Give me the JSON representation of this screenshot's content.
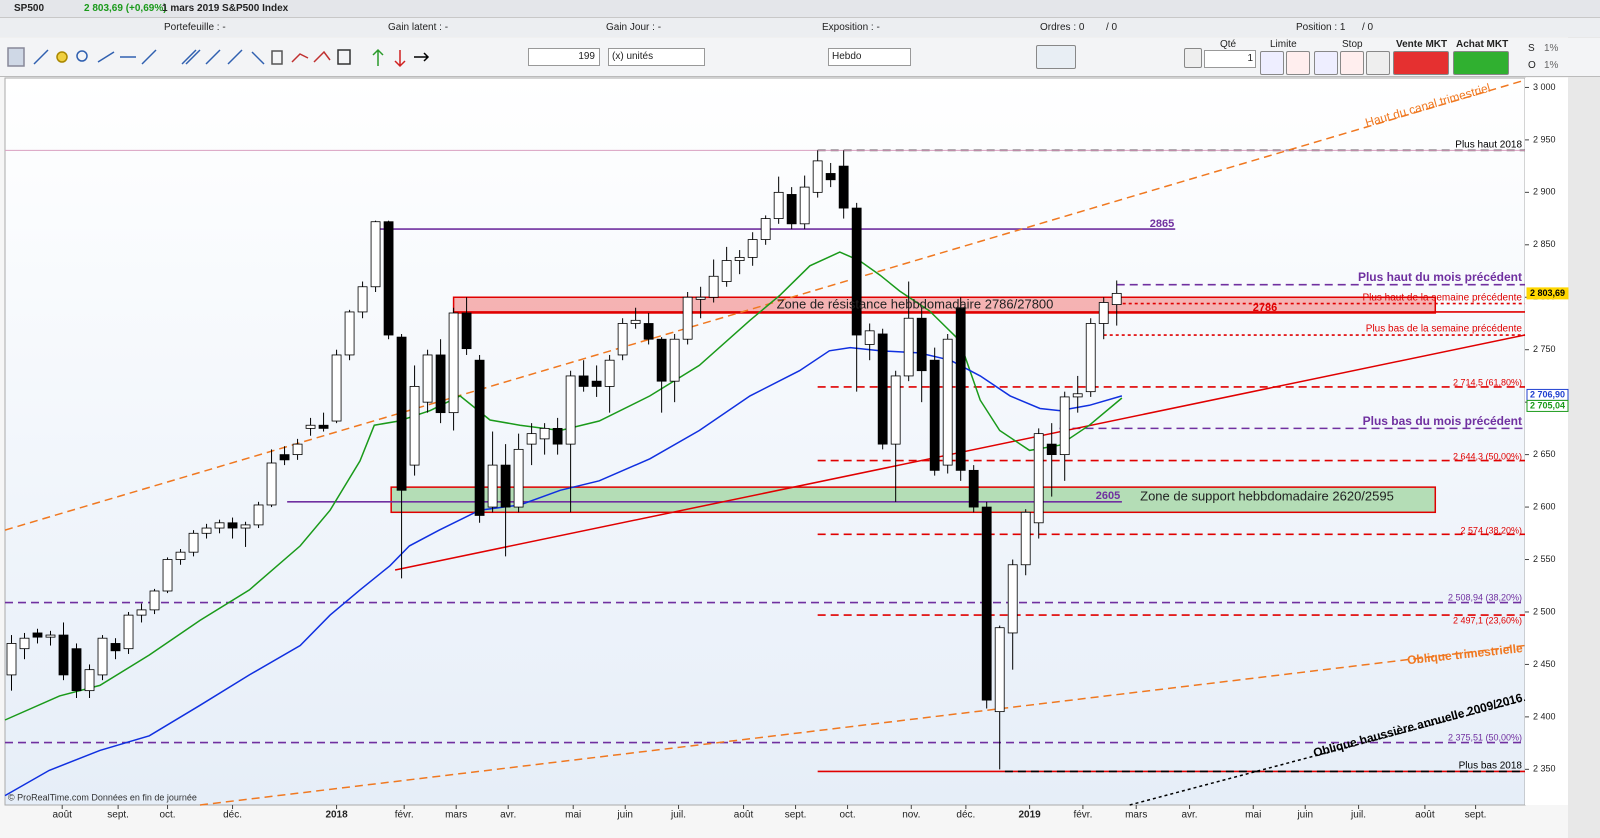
{
  "ui": {
    "symbol": "SP500",
    "quote": "2 803,69 (+0,69%)",
    "description": "1 mars 2019 S&P500 Index",
    "info": [
      "Portefeuille : -",
      "Gain latent : -",
      "Gain Jour : -",
      "Exposition : -",
      "Ordres : 0",
      "/ 0",
      "Position : 1",
      "/ 0"
    ],
    "quantity": "199",
    "unit": "(x) unités",
    "period": "Hebdo",
    "qty_label": "Qté",
    "qty_value": "1",
    "limit": "Limite",
    "stop": "Stop",
    "sell": "Vente MKT",
    "buy": "Achat MKT",
    "s": "S",
    "o": "O",
    "pct1": "1%",
    "pct2": "1%",
    "footer": "© ProRealTime.com  Données en fin de journée"
  },
  "chart_data": {
    "type": "candlestick",
    "candles": [
      [
        2440,
        2478,
        2425,
        2470
      ],
      [
        2465,
        2480,
        2455,
        2475
      ],
      [
        2480,
        2484,
        2470,
        2476
      ],
      [
        2476,
        2482,
        2468,
        2478
      ],
      [
        2478,
        2490,
        2435,
        2440
      ],
      [
        2465,
        2470,
        2418,
        2425
      ],
      [
        2425,
        2450,
        2418,
        2445
      ],
      [
        2440,
        2478,
        2435,
        2475
      ],
      [
        2470,
        2475,
        2455,
        2463
      ],
      [
        2465,
        2500,
        2460,
        2497
      ],
      [
        2497,
        2508,
        2490,
        2502
      ],
      [
        2502,
        2522,
        2498,
        2520
      ],
      [
        2520,
        2552,
        2518,
        2550
      ],
      [
        2550,
        2560,
        2545,
        2557
      ],
      [
        2557,
        2578,
        2553,
        2575
      ],
      [
        2575,
        2584,
        2570,
        2580
      ],
      [
        2580,
        2588,
        2575,
        2585
      ],
      [
        2585,
        2590,
        2570,
        2580
      ],
      [
        2580,
        2586,
        2562,
        2583
      ],
      [
        2583,
        2605,
        2580,
        2602
      ],
      [
        2602,
        2655,
        2600,
        2642
      ],
      [
        2650,
        2658,
        2640,
        2645
      ],
      [
        2650,
        2665,
        2645,
        2660
      ],
      [
        2675,
        2685,
        2668,
        2678
      ],
      [
        2678,
        2690,
        2672,
        2675
      ],
      [
        2682,
        2750,
        2680,
        2745
      ],
      [
        2745,
        2788,
        2740,
        2786
      ],
      [
        2786,
        2815,
        2780,
        2810
      ],
      [
        2810,
        2873,
        2805,
        2872
      ],
      [
        2872,
        2873,
        2760,
        2764
      ],
      [
        2762,
        2765,
        2532,
        2616
      ],
      [
        2640,
        2735,
        2630,
        2715
      ],
      [
        2700,
        2750,
        2690,
        2745
      ],
      [
        2745,
        2760,
        2680,
        2690
      ],
      [
        2690,
        2790,
        2673,
        2785
      ],
      [
        2785,
        2800,
        2745,
        2751
      ],
      [
        2740,
        2745,
        2585,
        2592
      ],
      [
        2600,
        2672,
        2595,
        2640
      ],
      [
        2640,
        2660,
        2553,
        2600
      ],
      [
        2600,
        2670,
        2595,
        2655
      ],
      [
        2660,
        2680,
        2640,
        2670
      ],
      [
        2665,
        2680,
        2650,
        2675
      ],
      [
        2675,
        2685,
        2650,
        2660
      ],
      [
        2660,
        2730,
        2595,
        2725
      ],
      [
        2725,
        2740,
        2710,
        2715
      ],
      [
        2720,
        2735,
        2705,
        2715
      ],
      [
        2715,
        2745,
        2690,
        2740
      ],
      [
        2745,
        2780,
        2740,
        2775
      ],
      [
        2775,
        2790,
        2770,
        2778
      ],
      [
        2775,
        2785,
        2755,
        2760
      ],
      [
        2760,
        2762,
        2690,
        2720
      ],
      [
        2720,
        2765,
        2700,
        2760
      ],
      [
        2760,
        2805,
        2755,
        2800
      ],
      [
        2798,
        2810,
        2780,
        2800
      ],
      [
        2800,
        2836,
        2795,
        2820
      ],
      [
        2815,
        2848,
        2810,
        2835
      ],
      [
        2835,
        2845,
        2822,
        2838
      ],
      [
        2838,
        2862,
        2830,
        2855
      ],
      [
        2855,
        2878,
        2850,
        2875
      ],
      [
        2875,
        2915,
        2870,
        2900
      ],
      [
        2898,
        2905,
        2865,
        2870
      ],
      [
        2870,
        2916,
        2865,
        2905
      ],
      [
        2900,
        2940,
        2895,
        2930
      ],
      [
        2918,
        2928,
        2905,
        2912
      ],
      [
        2925,
        2940,
        2875,
        2885
      ],
      [
        2885,
        2890,
        2710,
        2764
      ],
      [
        2755,
        2775,
        2740,
        2768
      ],
      [
        2765,
        2770,
        2655,
        2660
      ],
      [
        2660,
        2730,
        2605,
        2725
      ],
      [
        2725,
        2815,
        2720,
        2780
      ],
      [
        2780,
        2790,
        2700,
        2730
      ],
      [
        2740,
        2752,
        2630,
        2635
      ],
      [
        2640,
        2765,
        2632,
        2760
      ],
      [
        2790,
        2800,
        2625,
        2635
      ],
      [
        2635,
        2640,
        2595,
        2600
      ],
      [
        2600,
        2605,
        2408,
        2416
      ],
      [
        2405,
        2487,
        2350,
        2485
      ],
      [
        2480,
        2550,
        2445,
        2545
      ],
      [
        2545,
        2598,
        2535,
        2595
      ],
      [
        2585,
        2675,
        2570,
        2670
      ],
      [
        2660,
        2680,
        2610,
        2650
      ],
      [
        2650,
        2710,
        2625,
        2705
      ],
      [
        2705,
        2725,
        2690,
        2708
      ],
      [
        2710,
        2780,
        2705,
        2775
      ],
      [
        2775,
        2800,
        2760,
        2795
      ],
      [
        2793,
        2816,
        2773,
        2803.69
      ]
    ],
    "series": [
      {
        "color": "#1a9a1a",
        "x": [
          -0.5,
          3.7,
          6.8,
          10.6,
          14.5,
          18.3,
          22.2,
          24.5,
          26.8,
          27.9,
          29.8,
          32.2,
          34.5,
          36.8,
          39.1,
          42.2,
          45.2,
          49.1,
          52.9,
          56.8,
          59.1,
          61.4,
          63.7,
          65.2,
          66.8,
          68.3,
          70.6,
          72.9,
          74.5,
          76,
          78.3,
          80.6,
          82.9,
          85.4
        ],
        "values": [
          2397,
          2420,
          2430,
          2459,
          2492,
          2521,
          2563,
          2597,
          2644,
          2678,
          2682,
          2692,
          2706,
          2683,
          2678,
          2673,
          2682,
          2706,
          2735,
          2778,
          2802,
          2830,
          2843,
          2835,
          2821,
          2806,
          2787,
          2759,
          2702,
          2673,
          2654,
          2659,
          2678,
          2704
        ]
      },
      {
        "color": "#1030e0",
        "x": [
          -0.5,
          2.9,
          6.8,
          10.6,
          14.5,
          18.3,
          22.2,
          24.5,
          26.8,
          29.1,
          30.6,
          32.9,
          36,
          39.1,
          42.2,
          45.2,
          49.1,
          52.9,
          56.8,
          60.6,
          62.9,
          64.5,
          66.8,
          69.8,
          72.2,
          74.5,
          76.8,
          79.1,
          80.6,
          82.9,
          85.4
        ],
        "values": [
          2325,
          2349,
          2368,
          2382,
          2411,
          2440,
          2468,
          2497,
          2521,
          2544,
          2563,
          2578,
          2597,
          2602,
          2616,
          2625,
          2646,
          2673,
          2706,
          2730,
          2749,
          2752,
          2749,
          2747,
          2740,
          2725,
          2706,
          2694,
          2692,
          2697,
          2706
        ]
      }
    ],
    "levels": [
      {
        "value": 2940,
        "from": 62,
        "color": "#000000",
        "dash": "dashed",
        "label": "Plus haut 2018"
      },
      {
        "value": 2940,
        "color": "#d8a0c0",
        "dash": "solid"
      },
      {
        "value": 2865,
        "from": 28.2,
        "to": 89.5,
        "color": "#7030a0",
        "dash": "solid",
        "label": "2865"
      },
      {
        "value": 2812,
        "from": 85,
        "color": "#7030a0",
        "dash": "dashed",
        "label": "Plus haut du mois précédent"
      },
      {
        "value": 2794,
        "from": 85,
        "color": "#e00000",
        "dash": "dotted",
        "label": "Plus haut de la semaine précédente"
      },
      {
        "value": 2786,
        "from": 34,
        "color": "#e00000",
        "dash": "solid",
        "label": "2786"
      },
      {
        "value": 2764,
        "from": 84,
        "color": "#e00000",
        "dash": "dotted",
        "label": "Plus bas de la semaine précédente"
      },
      {
        "value": 2714.5,
        "from": 62,
        "color": "#e00000",
        "dash": "dashed",
        "label": "2 714,5 (61,80%)"
      },
      {
        "value": 2675,
        "from": 80.6,
        "color": "#7030a0",
        "dash": "dashed",
        "label": "Plus bas du mois précédent"
      },
      {
        "value": 2644.3,
        "from": 62,
        "color": "#e00000",
        "dash": "dashed",
        "label": "2 644,3 (50,00%)"
      },
      {
        "value": 2605,
        "from": 21.2,
        "to": 85.4,
        "color": "#7030a0",
        "dash": "solid",
        "label": "2605"
      },
      {
        "value": 2574,
        "from": 62,
        "color": "#e00000",
        "dash": "dashed",
        "label": "2 574 (38,20%)"
      },
      {
        "value": 2508.94,
        "color": "#7030a0",
        "dash": "dashed",
        "label": "2 508,94 (38,20%)"
      },
      {
        "value": 2497.1,
        "from": 62,
        "color": "#e00000",
        "dash": "dashed",
        "label": "2 497,1 (23,60%)"
      },
      {
        "value": 2375.51,
        "color": "#7030a0",
        "dash": "dashed",
        "label": "2 375,51 (50,00%)"
      },
      {
        "value": 2348,
        "from": 62,
        "color": "#e00000",
        "dash": "solid"
      },
      {
        "value": 2348,
        "from": 76.4,
        "color": "#000000",
        "dash": "dashed",
        "label": "Plus bas 2018"
      }
    ],
    "zones": [
      {
        "low": 2785,
        "high": 2800,
        "from": 34,
        "to": 109.5,
        "fill": "#f4a6a6",
        "stroke": "#e00000",
        "label": "Zone de résistance hebbdomadaire 2786/27800"
      },
      {
        "low": 2595,
        "high": 2619,
        "from": 29.2,
        "to": 109.5,
        "fill": "#a9d8a9",
        "stroke": "#e00000",
        "label": "Zone de support hebbdomadaire 2620/2595"
      }
    ],
    "trendlines": [
      {
        "x": [
          -0.5,
          116.4
        ],
        "values": [
          2578,
          3007
        ],
        "color": "#f07820",
        "dash": "dashed",
        "label": "Haut du canal trimestriel"
      },
      {
        "x": [
          29.5,
          116.4
        ],
        "values": [
          2540,
          2764
        ],
        "color": "#e00000",
        "dash": "solid"
      },
      {
        "x": [
          14.5,
          116.4
        ],
        "values": [
          2316,
          2468
        ],
        "color": "#f07820",
        "dash": "dashed",
        "label": "Oblique trimestrielle"
      },
      {
        "x": [
          86,
          116.4
        ],
        "values": [
          2316,
          2416
        ],
        "color": "#000000",
        "dash": "dotted",
        "label": "Oblique haussière annuelle 2009/2016"
      }
    ],
    "price_labels": [
      {
        "value": 2803.69,
        "label": "2 803,69",
        "color": "#ffd700"
      },
      {
        "value": 2706.9,
        "label": "2 706,90",
        "color": "#1f3fd0"
      },
      {
        "value": 2705.04,
        "label": "2 705,04",
        "color": "#1a9a1a"
      }
    ],
    "xlim": [
      -0.5,
      116.4
    ],
    "xticks": [
      {
        "value": 3.9,
        "label": "août"
      },
      {
        "value": 8.2,
        "label": "sept."
      },
      {
        "value": 12,
        "label": "oct."
      },
      {
        "value": 17,
        "label": "déc."
      },
      {
        "value": 25,
        "label": "2018"
      },
      {
        "value": 30.2,
        "label": "févr."
      },
      {
        "value": 34.2,
        "label": "mars"
      },
      {
        "value": 38.2,
        "label": "avr."
      },
      {
        "value": 43.2,
        "label": "mai"
      },
      {
        "value": 47.2,
        "label": "juin"
      },
      {
        "value": 51.3,
        "label": "juil."
      },
      {
        "value": 56.3,
        "label": "août"
      },
      {
        "value": 60.3,
        "label": "sept."
      },
      {
        "value": 64.3,
        "label": "oct."
      },
      {
        "value": 69.2,
        "label": "nov."
      },
      {
        "value": 73.4,
        "label": "déc."
      },
      {
        "value": 78.3,
        "label": "2019"
      },
      {
        "value": 82.4,
        "label": "févr."
      },
      {
        "value": 86.5,
        "label": "mars"
      },
      {
        "value": 90.6,
        "label": "avr."
      },
      {
        "value": 95.5,
        "label": "mai"
      },
      {
        "value": 99.5,
        "label": "juin"
      },
      {
        "value": 103.6,
        "label": "juil."
      },
      {
        "value": 108.7,
        "label": "août"
      },
      {
        "value": 112.6,
        "label": "sept."
      }
    ],
    "ylim": [
      2316,
      3009
    ],
    "yticks": [
      {
        "value": 2350,
        "label": "2 350"
      },
      {
        "value": 2400,
        "label": "2 400"
      },
      {
        "value": 2450,
        "label": "2 450"
      },
      {
        "value": 2500,
        "label": "2 500"
      },
      {
        "value": 2550,
        "label": "2 550"
      },
      {
        "value": 2600,
        "label": "2 600"
      },
      {
        "value": 2650,
        "label": "2 650"
      },
      {
        "value": 2700,
        "label": "2 700"
      },
      {
        "value": 2750,
        "label": "2 750"
      },
      {
        "value": 2800,
        "label": "2 800"
      },
      {
        "value": 2850,
        "label": "2 850"
      },
      {
        "value": 2900,
        "label": "2 900"
      },
      {
        "value": 2950,
        "label": "2 950"
      },
      {
        "value": 3000,
        "label": "3 000"
      }
    ]
  }
}
